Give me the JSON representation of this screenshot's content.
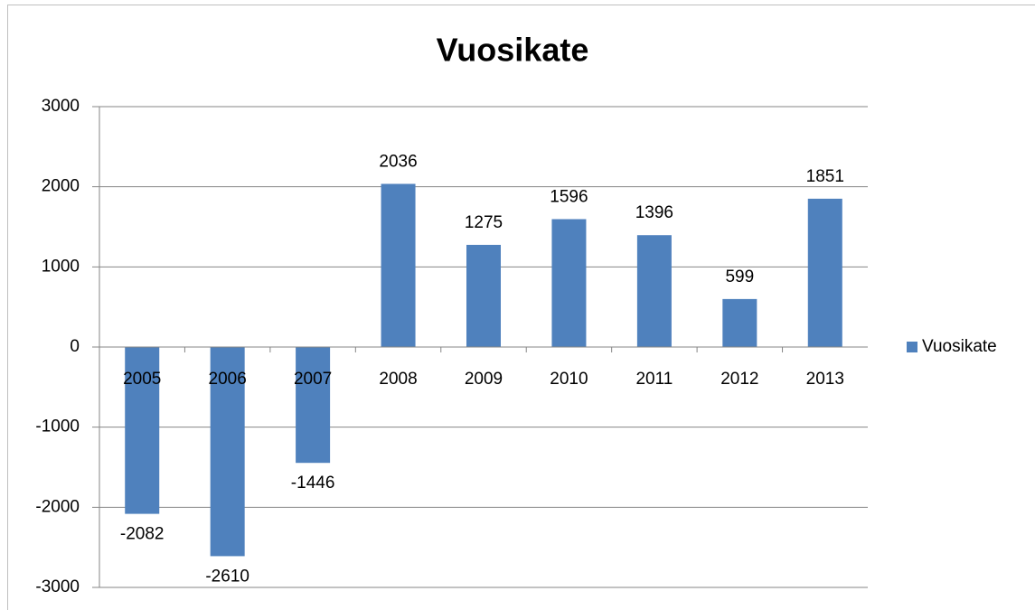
{
  "chart_data": {
    "type": "bar",
    "title": "Vuosikate",
    "categories": [
      "2005",
      "2006",
      "2007",
      "2008",
      "2009",
      "2010",
      "2011",
      "2012",
      "2013"
    ],
    "series": [
      {
        "name": "Vuosikate",
        "color": "#4f81bd",
        "values": [
          -2082,
          -2610,
          -1446,
          2036,
          1275,
          1596,
          1396,
          599,
          1851
        ]
      }
    ],
    "ylim": [
      -3000,
      3000
    ],
    "yticks": [
      -3000,
      -2000,
      -1000,
      0,
      1000,
      2000,
      3000
    ],
    "grid": true,
    "legend": "right"
  }
}
